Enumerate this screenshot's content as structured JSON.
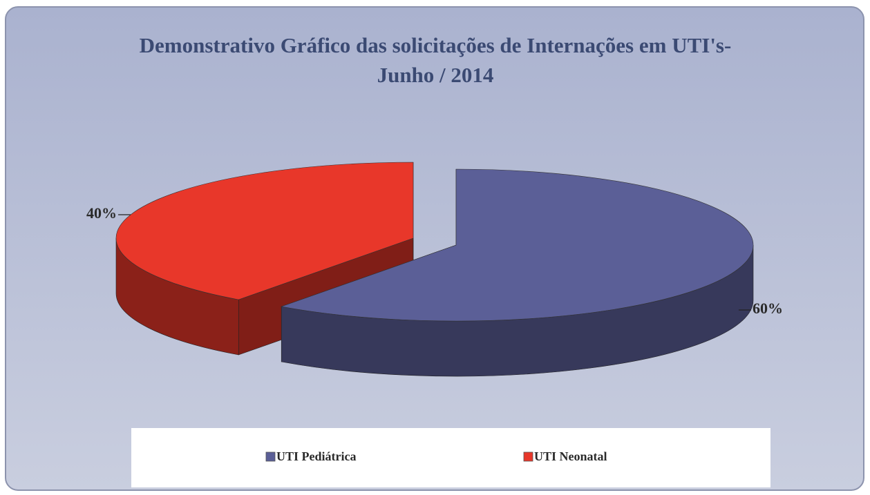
{
  "chart_data": {
    "type": "pie",
    "title": "Demonstrativo Gráfico das solicitações de Internações em UTI's- Junho / 2014",
    "categories": [
      "UTI Pediátrica",
      "UTI Neonatal"
    ],
    "values": [
      60,
      40
    ],
    "value_labels": [
      "60%",
      "40%"
    ],
    "colors": [
      "#5b5f97",
      "#e8372a"
    ],
    "legend": "bottom"
  }
}
